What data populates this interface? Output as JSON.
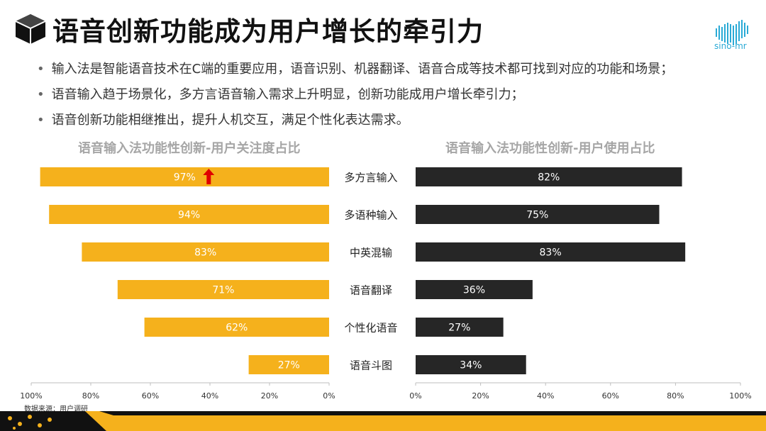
{
  "header": {
    "title": "语音创新功能成为用户增长的牵引力",
    "logo_text": "sino-mr"
  },
  "bullets": [
    "输入法是智能语音技术在C端的重要应用，语音识别、机器翻译、语音合成等技术都可找到对应的功能和场景；",
    "语音输入趋于场景化，多方言语音输入需求上升明显，创新功能成用户增长牵引力；",
    "语音创新功能相继推出，提升人机交互，满足个性化表达需求。"
  ],
  "source": "数据来源：用户调研",
  "colors": {
    "left_bar": "#f5b11c",
    "right_bar": "#262626",
    "arrow": "#e00000",
    "accent": "#2aaad6"
  },
  "chart_data": [
    {
      "type": "bar",
      "orientation": "horizontal",
      "direction": "right-to-left",
      "title": "语音输入法功能性创新-用户关注度占比",
      "categories": [
        "多方言输入",
        "多语种输入",
        "中英混输",
        "语音翻译",
        "个性化语音",
        "语音斗图"
      ],
      "values": [
        97,
        94,
        83,
        71,
        62,
        27
      ],
      "value_labels": [
        "97%",
        "94%",
        "83%",
        "71%",
        "62%",
        "27%"
      ],
      "xlim": [
        0,
        100
      ],
      "ticks": [
        "100%",
        "80%",
        "60%",
        "40%",
        "20%",
        "0%"
      ],
      "annotation": "up-arrow next to 97%"
    },
    {
      "type": "bar",
      "orientation": "horizontal",
      "direction": "left-to-right",
      "title": "语音输入法功能性创新-用户使用占比",
      "categories": [
        "多方言输入",
        "多语种输入",
        "中英混输",
        "语音翻译",
        "个性化语音",
        "语音斗图"
      ],
      "values": [
        82,
        75,
        83,
        36,
        27,
        34
      ],
      "value_labels": [
        "82%",
        "75%",
        "83%",
        "36%",
        "27%",
        "34%"
      ],
      "xlim": [
        0,
        100
      ],
      "ticks": [
        "0%",
        "20%",
        "40%",
        "60%",
        "80%",
        "100%"
      ]
    }
  ]
}
